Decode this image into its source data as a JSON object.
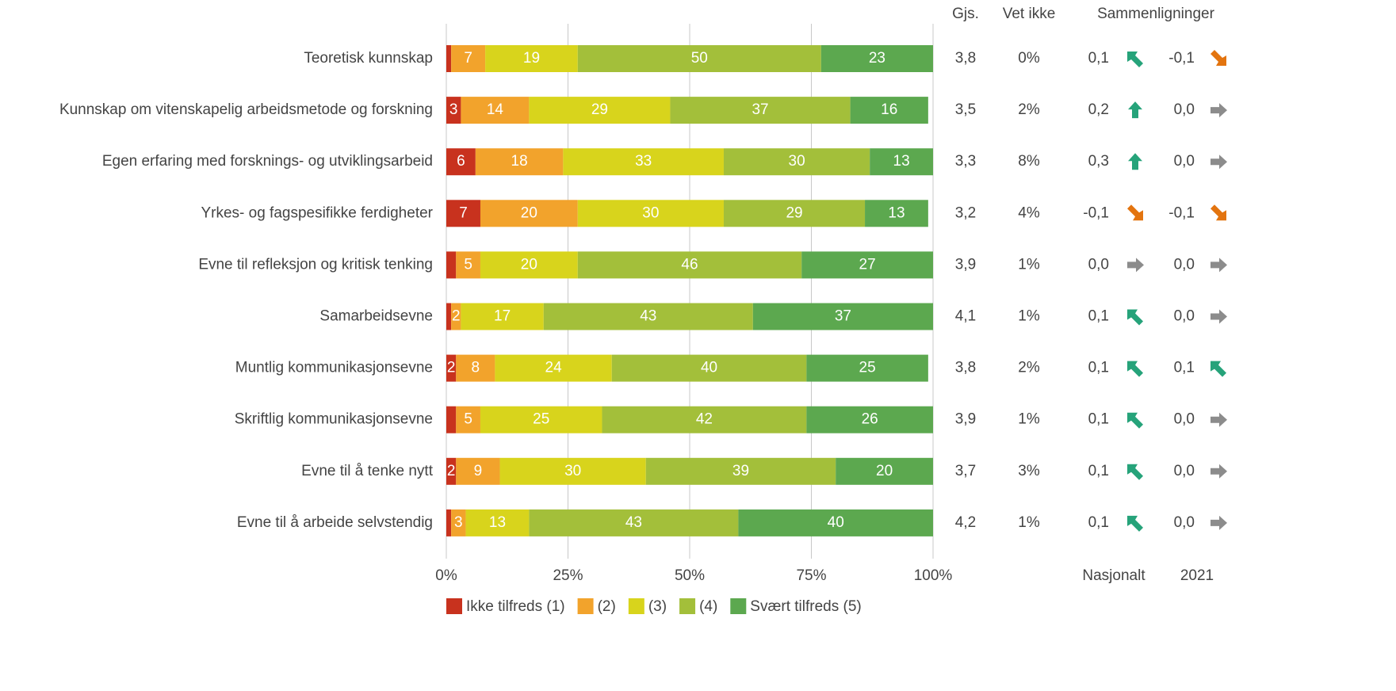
{
  "chart_data": {
    "type": "stacked-bar-horizontal",
    "categories": [
      "Teoretisk kunnskap",
      "Kunnskap om vitenskapelig arbeidsmetode og forskning",
      "Egen erfaring med forsknings- og utviklingsarbeid",
      "Yrkes- og fagspesifikke ferdigheter",
      "Evne til refleksjon og kritisk tenking",
      "Samarbeidsevne",
      "Muntlig kommunikasjonsevne",
      "Skriftlig kommunikasjonsevne",
      "Evne til å tenke nytt",
      "Evne til å arbeide selvstendig"
    ],
    "series": [
      {
        "name": "Ikke tilfreds (1)",
        "color": "#c8321e",
        "values": [
          1,
          3,
          6,
          7,
          2,
          1,
          2,
          2,
          2,
          1
        ],
        "value_labels": [
          null,
          3,
          6,
          7,
          null,
          null,
          2,
          null,
          2,
          null
        ]
      },
      {
        "name": "(2)",
        "color": "#f2a32c",
        "values": [
          7,
          14,
          18,
          20,
          5,
          2,
          8,
          5,
          9,
          3
        ],
        "value_labels": [
          7,
          14,
          18,
          20,
          5,
          2,
          8,
          5,
          9,
          3
        ]
      },
      {
        "name": "(3)",
        "color": "#d8d41c",
        "values": [
          19,
          29,
          33,
          30,
          20,
          17,
          24,
          25,
          30,
          13
        ],
        "value_labels": [
          19,
          29,
          33,
          30,
          20,
          17,
          24,
          25,
          30,
          13
        ]
      },
      {
        "name": "(4)",
        "color": "#a3bf3a",
        "values": [
          50,
          37,
          30,
          29,
          46,
          43,
          40,
          42,
          39,
          43
        ],
        "value_labels": [
          50,
          37,
          30,
          29,
          46,
          43,
          40,
          42,
          39,
          43
        ]
      },
      {
        "name": "Svært tilfreds (5)",
        "color": "#5ca84f",
        "values": [
          23,
          16,
          13,
          13,
          27,
          37,
          25,
          26,
          20,
          40
        ],
        "value_labels": [
          23,
          16,
          13,
          13,
          27,
          37,
          25,
          26,
          20,
          40
        ]
      }
    ],
    "xlim": [
      0,
      100
    ],
    "xticks": [
      {
        "value": 0,
        "label": "0%"
      },
      {
        "value": 25,
        "label": "25%"
      },
      {
        "value": 50,
        "label": "50%"
      },
      {
        "value": 75,
        "label": "75%"
      },
      {
        "value": 100,
        "label": "100%"
      }
    ],
    "grid": true,
    "table": {
      "headers": {
        "mean": "Gjs.",
        "unknown": "Vet ikke",
        "comparisons": "Sammenligninger",
        "national": "Nasjonalt",
        "year": "2021"
      },
      "rows": [
        {
          "mean": "3,8",
          "unknown": "0%",
          "national": "0,1",
          "national_trend": "slight-up",
          "year": "-0,1",
          "year_trend": "slight-down"
        },
        {
          "mean": "3,5",
          "unknown": "2%",
          "national": "0,2",
          "national_trend": "up",
          "year": "0,0",
          "year_trend": "flat"
        },
        {
          "mean": "3,3",
          "unknown": "8%",
          "national": "0,3",
          "national_trend": "up",
          "year": "0,0",
          "year_trend": "flat"
        },
        {
          "mean": "3,2",
          "unknown": "4%",
          "national": "-0,1",
          "national_trend": "slight-down",
          "year": "-0,1",
          "year_trend": "slight-down"
        },
        {
          "mean": "3,9",
          "unknown": "1%",
          "national": "0,0",
          "national_trend": "flat",
          "year": "0,0",
          "year_trend": "flat"
        },
        {
          "mean": "4,1",
          "unknown": "1%",
          "national": "0,1",
          "national_trend": "slight-up",
          "year": "0,0",
          "year_trend": "flat"
        },
        {
          "mean": "3,8",
          "unknown": "2%",
          "national": "0,1",
          "national_trend": "slight-up",
          "year": "0,1",
          "year_trend": "slight-up"
        },
        {
          "mean": "3,9",
          "unknown": "1%",
          "national": "0,1",
          "national_trend": "slight-up",
          "year": "0,0",
          "year_trend": "flat"
        },
        {
          "mean": "3,7",
          "unknown": "3%",
          "national": "0,1",
          "national_trend": "slight-up",
          "year": "0,0",
          "year_trend": "flat"
        },
        {
          "mean": "4,2",
          "unknown": "1%",
          "national": "0,1",
          "national_trend": "slight-up",
          "year": "0,0",
          "year_trend": "flat"
        }
      ]
    }
  }
}
